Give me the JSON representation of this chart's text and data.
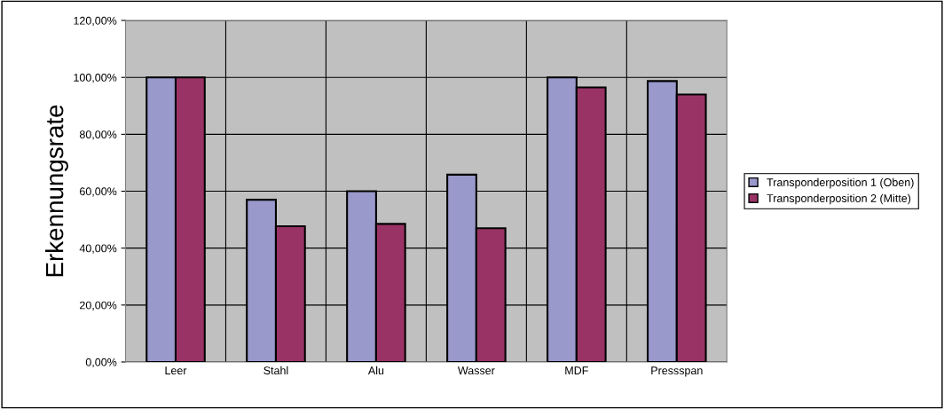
{
  "chart_data": {
    "type": "bar",
    "ylabel": "Erkennungsrate",
    "categories": [
      "Leer",
      "Stahl",
      "Alu",
      "Wasser",
      "MDF",
      "Pressspan"
    ],
    "series": [
      {
        "name": "Transponderposition 1 (Oben)",
        "color": "#9999cc",
        "values": [
          100,
          57,
          60,
          65.8,
          100,
          98.7
        ]
      },
      {
        "name": "Transponderposition 2 (Mitte)",
        "color": "#993366",
        "values": [
          100,
          47.7,
          48.5,
          47,
          96.5,
          94
        ]
      }
    ],
    "ylim": [
      0,
      120
    ],
    "yticks": [
      {
        "value": 0,
        "label": "0,00%"
      },
      {
        "value": 20,
        "label": "20,00%"
      },
      {
        "value": 40,
        "label": "40,00%"
      },
      {
        "value": 60,
        "label": "60,00%"
      },
      {
        "value": 80,
        "label": "80,00%"
      },
      {
        "value": 100,
        "label": "100,00%"
      },
      {
        "value": 120,
        "label": "120,00%"
      }
    ],
    "grid": true,
    "legend": "right"
  }
}
